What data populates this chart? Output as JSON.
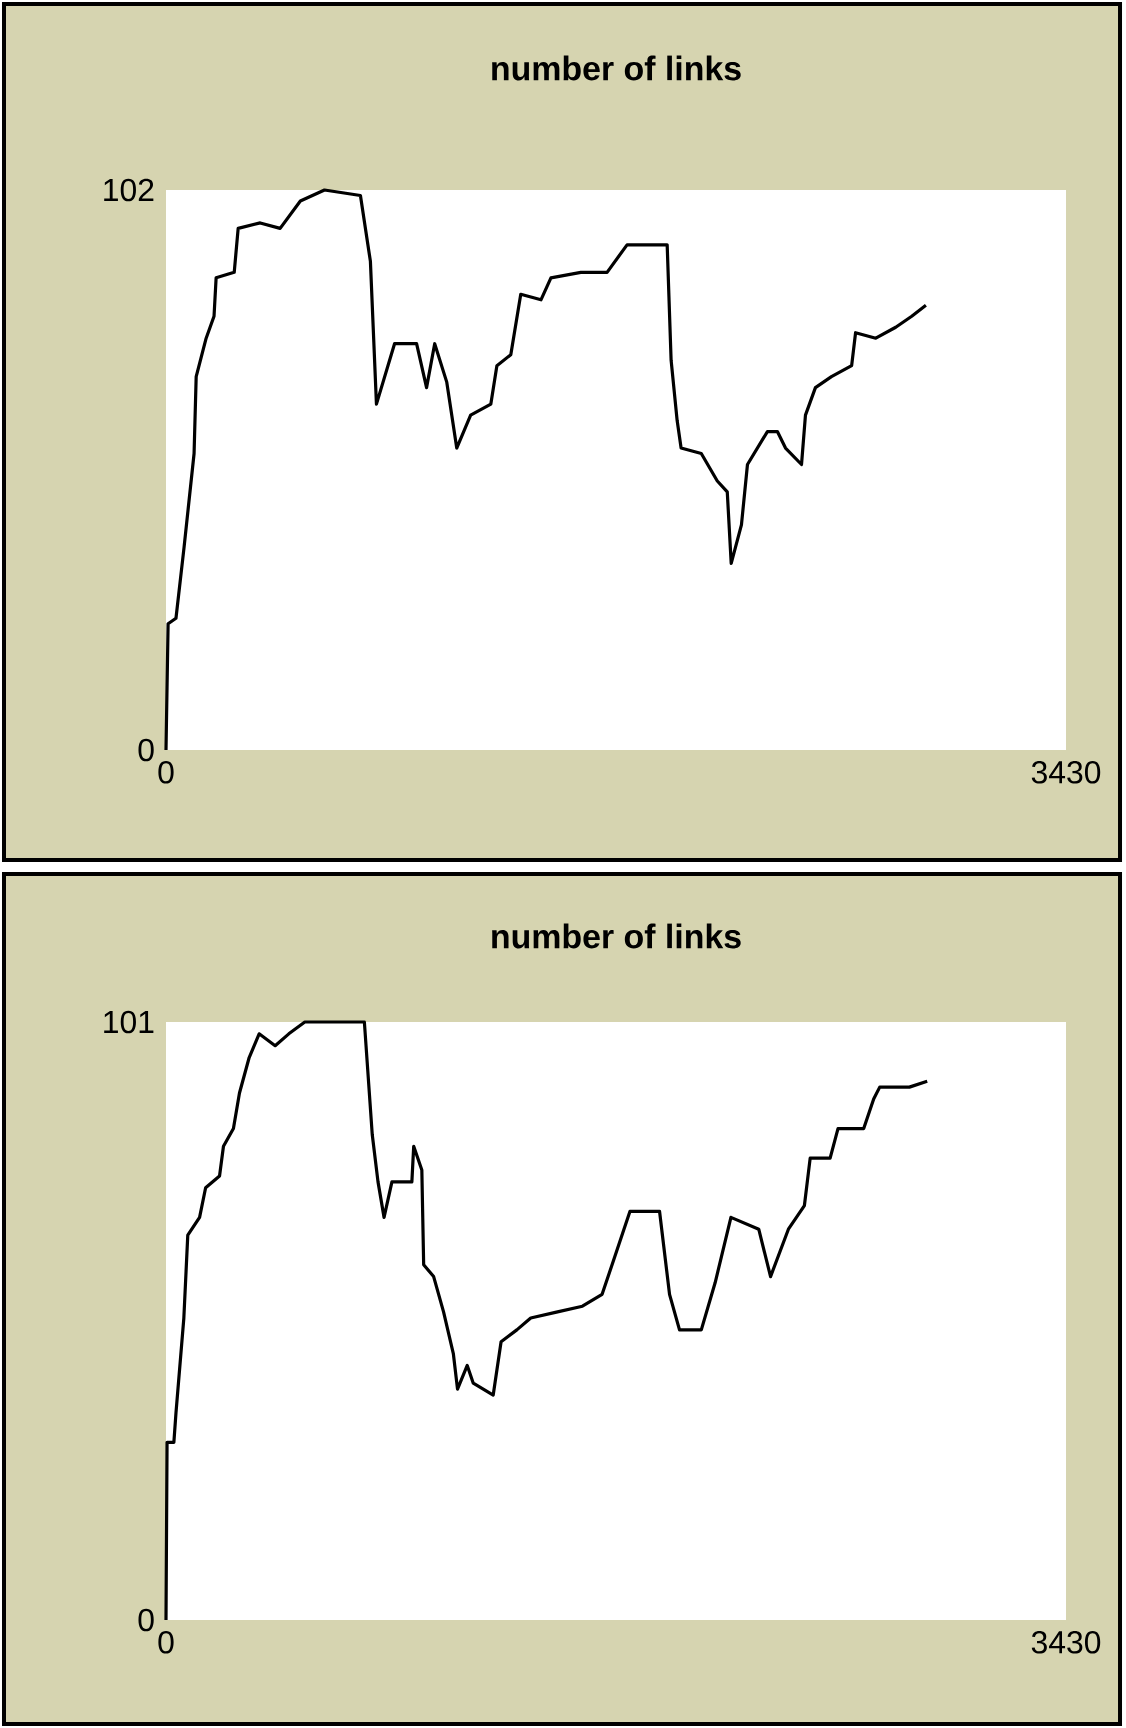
{
  "chart_data": [
    {
      "type": "line",
      "title": "number of links",
      "color": "#000000",
      "xlim": [
        0,
        3430
      ],
      "ylim": [
        0,
        102
      ],
      "xticks": [
        0,
        3430
      ],
      "yticks": [
        0,
        102
      ],
      "x": [
        0,
        8,
        38,
        69,
        107,
        115,
        153,
        183,
        191,
        260,
        275,
        359,
        435,
        512,
        604,
        741,
        779,
        802,
        871,
        955,
        993,
        1024,
        1070,
        1108,
        1161,
        1238,
        1261,
        1314,
        1352,
        1429,
        1467,
        1581,
        1681,
        1757,
        1910,
        1925,
        1948,
        1963,
        2040,
        2101,
        2139,
        2154,
        2193,
        2216,
        2292,
        2330,
        2361,
        2422,
        2437,
        2475,
        2536,
        2613,
        2628,
        2705,
        2781,
        2842,
        2896
      ],
      "values": [
        0,
        23,
        24,
        37,
        54,
        68,
        75,
        79,
        86,
        87,
        95,
        96,
        95,
        100,
        102,
        101,
        89,
        63,
        74,
        74,
        66,
        74,
        67,
        55,
        61,
        63,
        70,
        72,
        83,
        82,
        86,
        87,
        87,
        92,
        92,
        71,
        60,
        55,
        54,
        49,
        47,
        34,
        41,
        52,
        58,
        58,
        55,
        52,
        61,
        66,
        68,
        70,
        76,
        75,
        77,
        79,
        81
      ]
    },
    {
      "type": "line",
      "title": "number of links",
      "color": "#000000",
      "xlim": [
        0,
        3430
      ],
      "ylim": [
        0,
        101
      ],
      "xticks": [
        0,
        3430
      ],
      "yticks": [
        0,
        101
      ],
      "x": [
        0,
        4,
        30,
        38,
        68,
        83,
        128,
        151,
        204,
        219,
        257,
        280,
        317,
        355,
        416,
        468,
        529,
        756,
        786,
        808,
        831,
        861,
        937,
        944,
        975,
        982,
        1020,
        1058,
        1095,
        1111,
        1148,
        1171,
        1247,
        1277,
        1337,
        1390,
        1488,
        1587,
        1662,
        1700,
        1768,
        1881,
        1919,
        1957,
        2040,
        2093,
        2153,
        2259,
        2304,
        2372,
        2433,
        2455,
        2531,
        2561,
        2659,
        2697,
        2720,
        2833,
        2901
      ],
      "values": [
        0,
        30,
        30,
        35,
        51,
        65,
        68,
        73,
        75,
        80,
        83,
        89,
        95,
        99,
        97,
        99,
        101,
        101,
        82,
        74,
        68,
        74,
        74,
        80,
        76,
        60,
        58,
        52,
        45,
        39,
        43,
        40,
        38,
        47,
        49,
        51,
        52,
        53,
        55,
        60,
        69,
        69,
        55,
        49,
        49,
        57,
        68,
        66,
        58,
        66,
        70,
        78,
        78,
        83,
        83,
        88,
        90,
        90,
        91
      ]
    }
  ]
}
